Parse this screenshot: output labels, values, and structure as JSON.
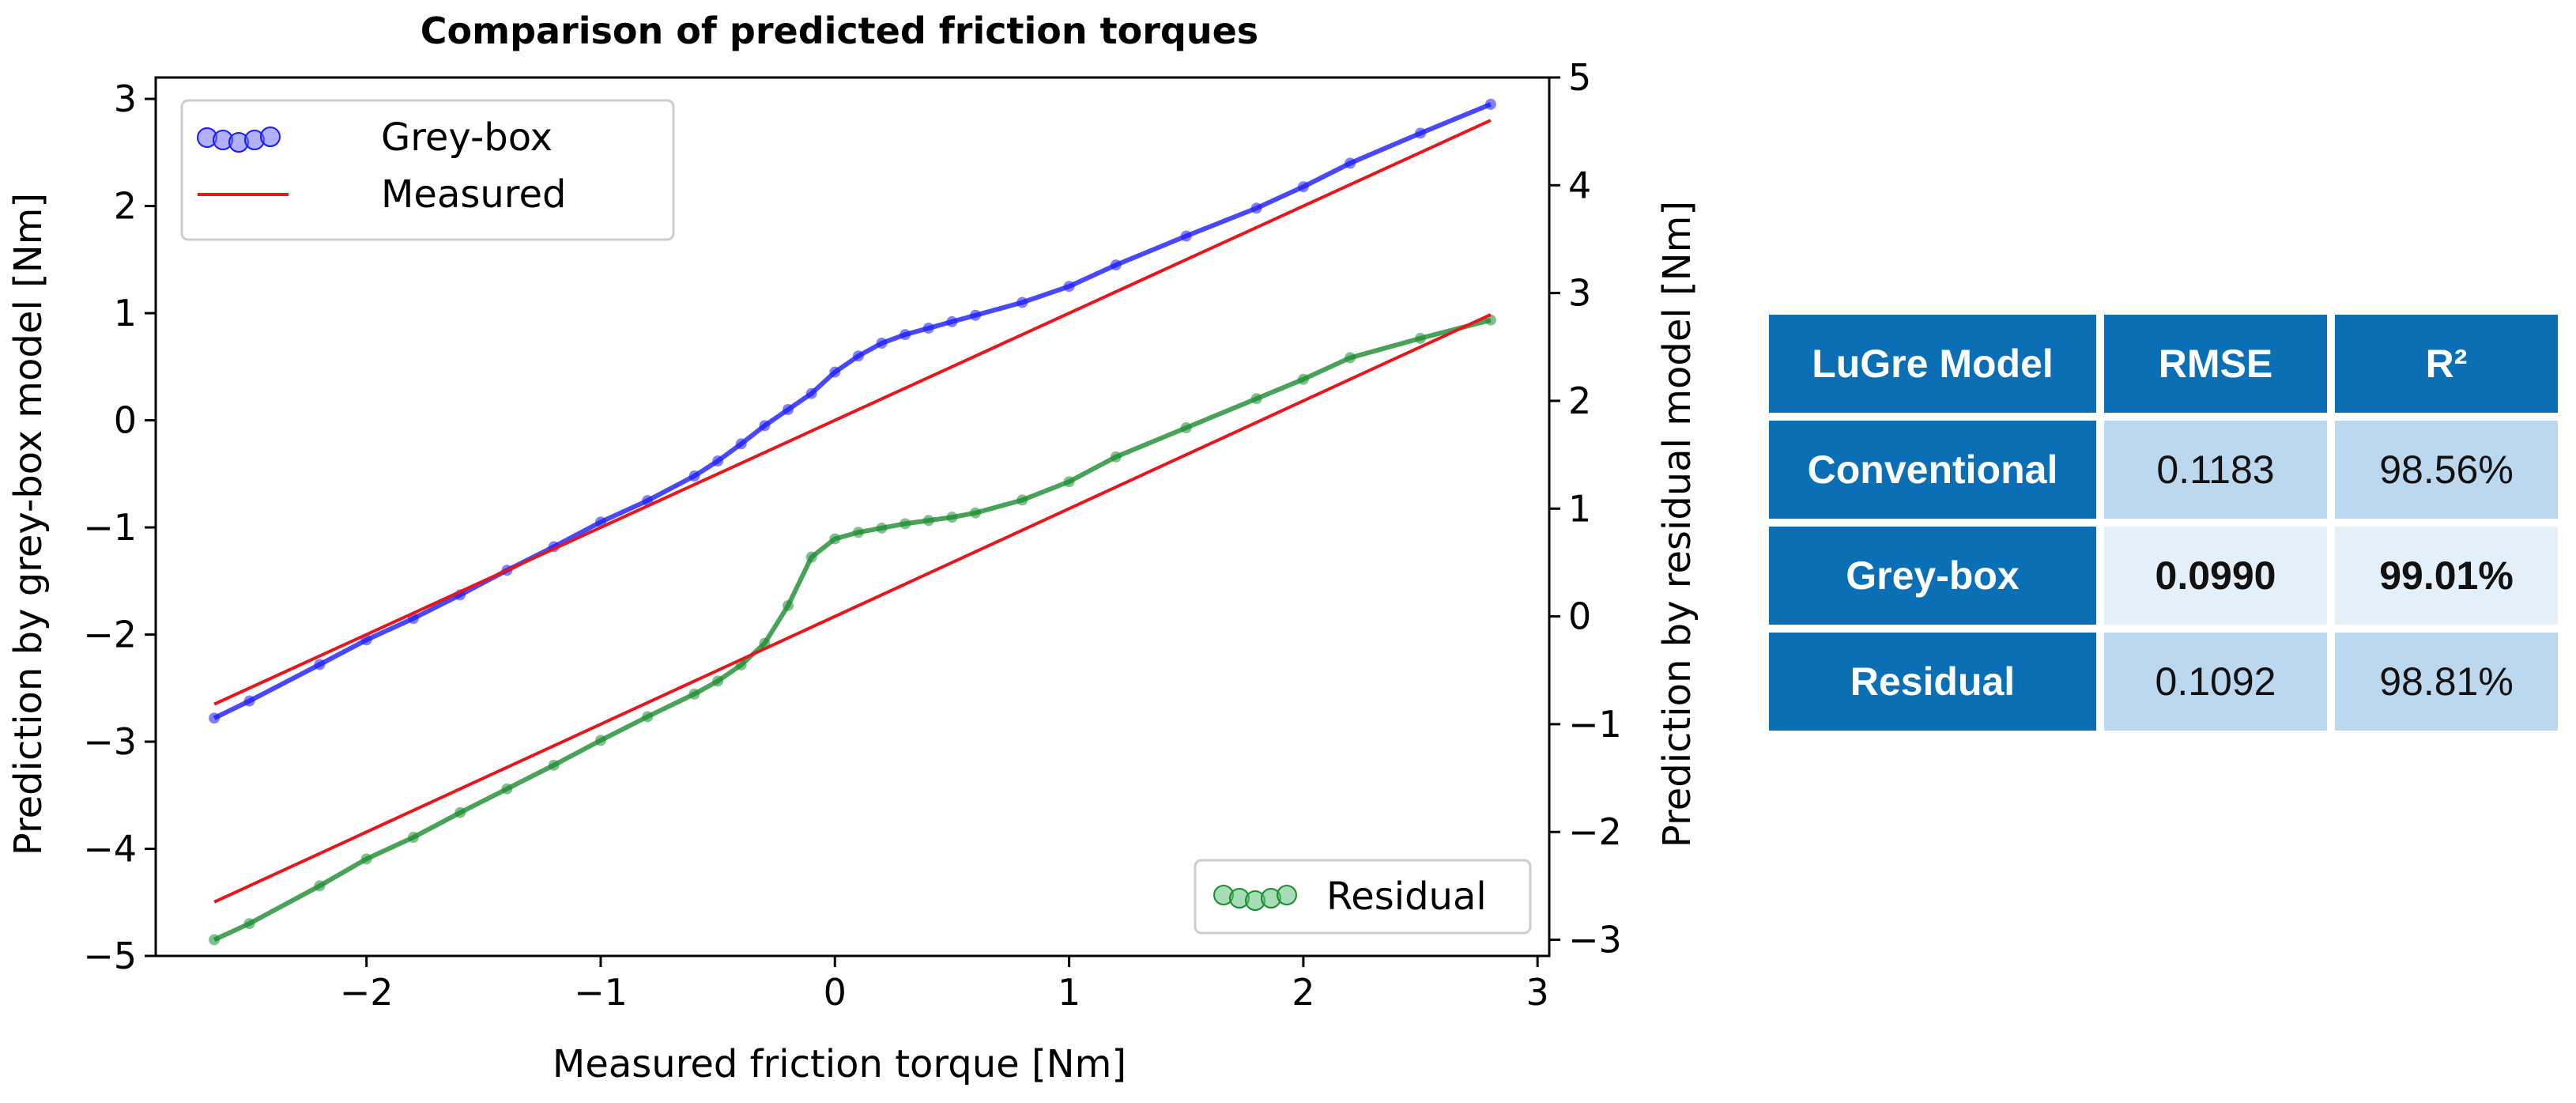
{
  "chart_data": {
    "type": "scatter",
    "title": "Comparison of predicted friction torques",
    "xlabel": "Measured friction torque [Nm]",
    "ylabel": "Prediction by grey-box model [Nm]",
    "ylabel_right": "Prediction by residual model [Nm]",
    "xlim": [
      -2.9,
      3.05
    ],
    "ylim": [
      -5.0,
      3.2
    ],
    "ylim_right": [
      -3.15,
      5.0
    ],
    "xticks": [
      "−2",
      "−1",
      "0",
      "1",
      "2",
      "3"
    ],
    "xtick_values": [
      -2,
      -1,
      0,
      1,
      2,
      3
    ],
    "yticks": [
      "3",
      "2",
      "1",
      "0",
      "−1",
      "−2",
      "−3",
      "−4",
      "−5"
    ],
    "ytick_values": [
      3,
      2,
      1,
      0,
      -1,
      -2,
      -3,
      -4,
      -5
    ],
    "yticks_right": [
      "5",
      "4",
      "3",
      "2",
      "1",
      "0",
      "−1",
      "−2",
      "−3"
    ],
    "ytick_values_right": [
      5,
      4,
      3,
      2,
      1,
      0,
      -1,
      -2,
      -3
    ],
    "legend_top": {
      "placement": "upper-left",
      "entries": [
        "Grey-box",
        "Measured"
      ]
    },
    "legend_bottom": {
      "placement": "lower-right",
      "entries": [
        "Residual"
      ]
    },
    "grid": false,
    "series": [
      {
        "name": "Grey-box",
        "axis": "left",
        "color": "#1a1aff",
        "x": [
          -2.65,
          -2.5,
          -2.2,
          -2.0,
          -1.8,
          -1.6,
          -1.4,
          -1.2,
          -1.0,
          -0.8,
          -0.6,
          -0.5,
          -0.4,
          -0.3,
          -0.2,
          -0.1,
          0.0,
          0.1,
          0.2,
          0.3,
          0.4,
          0.5,
          0.6,
          0.8,
          1.0,
          1.2,
          1.5,
          1.8,
          2.0,
          2.2,
          2.5,
          2.8
        ],
        "y": [
          -2.78,
          -2.62,
          -2.28,
          -2.05,
          -1.85,
          -1.63,
          -1.4,
          -1.18,
          -0.95,
          -0.75,
          -0.52,
          -0.38,
          -0.22,
          -0.05,
          0.1,
          0.25,
          0.45,
          0.6,
          0.72,
          0.8,
          0.86,
          0.92,
          0.98,
          1.1,
          1.25,
          1.45,
          1.72,
          1.98,
          2.18,
          2.4,
          2.68,
          2.95
        ]
      },
      {
        "name": "Residual",
        "axis": "right",
        "color": "#1a8c2e",
        "x": [
          -2.65,
          -2.5,
          -2.2,
          -2.0,
          -1.8,
          -1.6,
          -1.4,
          -1.2,
          -1.0,
          -0.8,
          -0.6,
          -0.5,
          -0.4,
          -0.3,
          -0.2,
          -0.1,
          0.0,
          0.1,
          0.2,
          0.3,
          0.4,
          0.5,
          0.6,
          0.8,
          1.0,
          1.2,
          1.5,
          1.8,
          2.0,
          2.2,
          2.5,
          2.8
        ],
        "y": [
          -3.0,
          -2.85,
          -2.5,
          -2.25,
          -2.05,
          -1.82,
          -1.6,
          -1.38,
          -1.15,
          -0.93,
          -0.72,
          -0.6,
          -0.45,
          -0.25,
          0.1,
          0.55,
          0.72,
          0.78,
          0.82,
          0.86,
          0.89,
          0.92,
          0.96,
          1.08,
          1.25,
          1.48,
          1.75,
          2.02,
          2.2,
          2.4,
          2.58,
          2.75
        ]
      },
      {
        "name": "Measured",
        "axis": "left",
        "type": "line",
        "color": "#e8161b",
        "x": [
          -2.65,
          2.8
        ],
        "y": [
          -2.65,
          2.8
        ]
      },
      {
        "axis": "right",
        "type": "line",
        "color": "#e8161b",
        "x": [
          -2.65,
          2.8
        ],
        "y": [
          -2.65,
          2.8
        ]
      }
    ]
  },
  "table": {
    "headers": [
      "LuGre Model",
      "RMSE",
      "R²"
    ],
    "rows": [
      {
        "model": "Conventional",
        "rmse": "0.1183",
        "r2": "98.56%"
      },
      {
        "model": "Grey-box",
        "rmse": "0.0990",
        "r2": "99.01%"
      },
      {
        "model": "Residual",
        "rmse": "0.1092",
        "r2": "98.81%"
      }
    ]
  }
}
